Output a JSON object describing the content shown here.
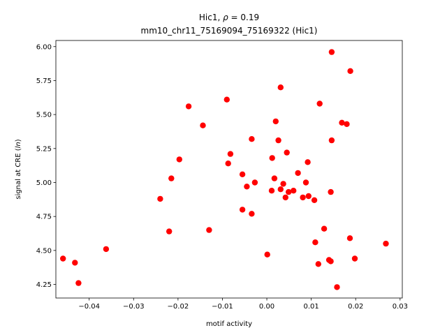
{
  "chart_data": {
    "type": "scatter",
    "title_line1": "Hic1, ρ = 0.19",
    "title_line2": "mm10_chr11_75169094_75169322 (Hic1)",
    "xlabel": "motif activity",
    "ylabel": "signal at CRE (ln)",
    "xlim": [
      -0.0475,
      0.0305
    ],
    "ylim": [
      4.15,
      6.045
    ],
    "xticks": [
      -0.04,
      -0.03,
      -0.02,
      -0.01,
      0.0,
      0.01,
      0.02,
      0.03
    ],
    "xtick_labels": [
      "−0.04",
      "−0.03",
      "−0.02",
      "−0.01",
      "0.00",
      "0.01",
      "0.02",
      "0.03"
    ],
    "yticks": [
      4.25,
      4.5,
      4.75,
      5.0,
      5.25,
      5.5,
      5.75,
      6.0
    ],
    "ytick_labels": [
      "4.25",
      "4.50",
      "4.75",
      "5.00",
      "5.25",
      "5.50",
      "5.75",
      "6.00"
    ],
    "marker_color": "#ff0000",
    "grid": false,
    "points": [
      {
        "x": -0.0459,
        "y": 4.44
      },
      {
        "x": -0.0432,
        "y": 4.41
      },
      {
        "x": -0.0424,
        "y": 4.26
      },
      {
        "x": -0.0362,
        "y": 4.51
      },
      {
        "x": -0.024,
        "y": 4.88
      },
      {
        "x": -0.022,
        "y": 4.64
      },
      {
        "x": -0.0215,
        "y": 5.03
      },
      {
        "x": -0.0197,
        "y": 5.17
      },
      {
        "x": -0.0176,
        "y": 5.56
      },
      {
        "x": -0.0144,
        "y": 5.42
      },
      {
        "x": -0.013,
        "y": 4.65
      },
      {
        "x": -0.009,
        "y": 5.61
      },
      {
        "x": -0.0087,
        "y": 5.14
      },
      {
        "x": -0.0082,
        "y": 5.21
      },
      {
        "x": -0.0055,
        "y": 5.06
      },
      {
        "x": -0.0055,
        "y": 4.8
      },
      {
        "x": -0.0045,
        "y": 4.97
      },
      {
        "x": -0.0034,
        "y": 5.32
      },
      {
        "x": -0.0034,
        "y": 4.77
      },
      {
        "x": -0.0027,
        "y": 5.0
      },
      {
        "x": 0.0001,
        "y": 4.47
      },
      {
        "x": 0.0011,
        "y": 4.94
      },
      {
        "x": 0.0012,
        "y": 5.18
      },
      {
        "x": 0.0017,
        "y": 5.03
      },
      {
        "x": 0.002,
        "y": 5.45
      },
      {
        "x": 0.0026,
        "y": 5.31
      },
      {
        "x": 0.0031,
        "y": 5.7
      },
      {
        "x": 0.0031,
        "y": 4.95
      },
      {
        "x": 0.0037,
        "y": 4.99
      },
      {
        "x": 0.0042,
        "y": 4.89
      },
      {
        "x": 0.0045,
        "y": 5.22
      },
      {
        "x": 0.0049,
        "y": 4.93
      },
      {
        "x": 0.006,
        "y": 4.94
      },
      {
        "x": 0.007,
        "y": 5.07
      },
      {
        "x": 0.0081,
        "y": 4.89
      },
      {
        "x": 0.0088,
        "y": 5.0
      },
      {
        "x": 0.0092,
        "y": 5.15
      },
      {
        "x": 0.0094,
        "y": 4.9
      },
      {
        "x": 0.0107,
        "y": 4.87
      },
      {
        "x": 0.0109,
        "y": 4.56
      },
      {
        "x": 0.0116,
        "y": 4.4
      },
      {
        "x": 0.0119,
        "y": 5.58
      },
      {
        "x": 0.0129,
        "y": 4.66
      },
      {
        "x": 0.014,
        "y": 4.43
      },
      {
        "x": 0.0144,
        "y": 4.42
      },
      {
        "x": 0.0144,
        "y": 4.93
      },
      {
        "x": 0.0146,
        "y": 5.31
      },
      {
        "x": 0.0146,
        "y": 5.96
      },
      {
        "x": 0.0158,
        "y": 4.23
      },
      {
        "x": 0.0169,
        "y": 5.44
      },
      {
        "x": 0.018,
        "y": 5.43
      },
      {
        "x": 0.0187,
        "y": 4.59
      },
      {
        "x": 0.0188,
        "y": 5.82
      },
      {
        "x": 0.0198,
        "y": 4.44
      },
      {
        "x": 0.0268,
        "y": 4.55
      }
    ]
  }
}
